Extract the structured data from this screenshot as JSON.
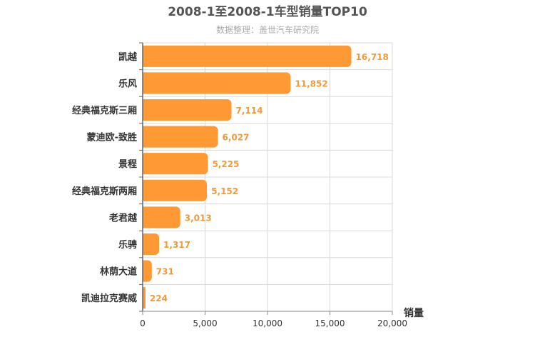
{
  "chart_data": {
    "type": "bar",
    "orientation": "horizontal",
    "title": "2008-1至2008-1车型销量TOP10",
    "subtitle": "数据整理：盖世汽车研究院",
    "xlabel": "销量",
    "ylabel": "",
    "xlim": [
      0,
      20000
    ],
    "xticks": [
      0,
      5000,
      10000,
      15000,
      20000
    ],
    "xtick_labels": [
      "0",
      "5,000",
      "10,000",
      "15,000",
      "20,000"
    ],
    "categories": [
      "凯越",
      "乐风",
      "经典福克斯三厢",
      "蒙迪欧-致胜",
      "景程",
      "经典福克斯两厢",
      "老君越",
      "乐骋",
      "林荫大道",
      "凯迪拉克赛威"
    ],
    "values": [
      16718,
      11852,
      7114,
      6027,
      5225,
      5152,
      3013,
      1317,
      731,
      224
    ],
    "value_labels": [
      "16,718",
      "11,852",
      "7,114",
      "6,027",
      "5,225",
      "5,152",
      "3,013",
      "1,317",
      "731",
      "224"
    ],
    "grid": true,
    "legend": "none",
    "bar_color": "#FF9933",
    "label_color": "#F29A3A"
  }
}
